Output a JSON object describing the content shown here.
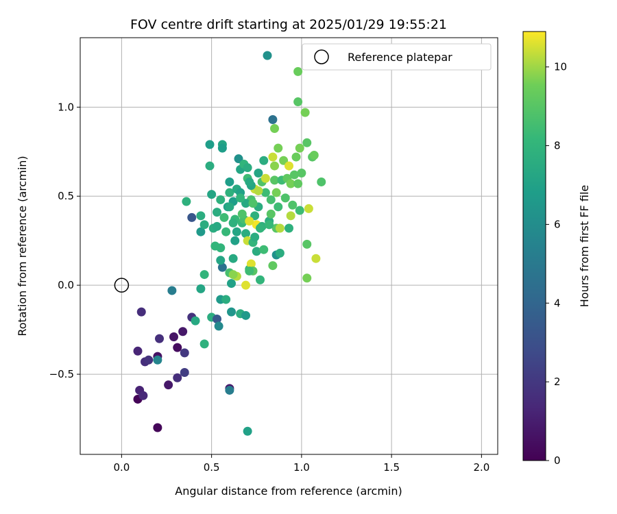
{
  "chart_data": {
    "type": "scatter",
    "title": "FOV centre drift starting at 2025/01/29 19:55:21",
    "xlabel": "Angular distance from reference (arcmin)",
    "ylabel": "Rotation from reference (arcmin)",
    "xlim": [
      -0.23,
      2.09
    ],
    "ylim": [
      -0.95,
      1.39
    ],
    "xticks": [
      0.0,
      0.5,
      1.0,
      1.5,
      2.0
    ],
    "xtick_labels": [
      "0.0",
      "0.5",
      "1.0",
      "1.5",
      "2.0"
    ],
    "yticks": [
      -0.5,
      0.0,
      0.5,
      1.0
    ],
    "ytick_labels": [
      "−0.5",
      "0.0",
      "0.5",
      "1.0"
    ],
    "grid": true,
    "legend": {
      "label": "Reference platepar",
      "placement": "top-right"
    },
    "reference_point": {
      "x": 0.0,
      "y": 0.0
    },
    "colorbar": {
      "label": "Hours from first FF file",
      "range": [
        0,
        10.9
      ],
      "ticks": [
        0,
        2,
        4,
        6,
        8,
        10
      ],
      "tick_labels": [
        "0",
        "2",
        "4",
        "6",
        "8",
        "10"
      ],
      "colormap": "viridis"
    },
    "points": [
      [
        0.09,
        -0.64,
        0.1
      ],
      [
        0.2,
        -0.8,
        0.2
      ],
      [
        0.1,
        -0.59,
        1.2
      ],
      [
        0.12,
        -0.62,
        1.4
      ],
      [
        0.11,
        -0.15,
        1.6
      ],
      [
        0.09,
        -0.37,
        1.3
      ],
      [
        0.13,
        -0.43,
        1.6
      ],
      [
        0.15,
        -0.42,
        1.8
      ],
      [
        0.2,
        -0.4,
        0.6
      ],
      [
        0.21,
        -0.3,
        1.7
      ],
      [
        0.26,
        -0.56,
        0.8
      ],
      [
        0.29,
        -0.29,
        0.7
      ],
      [
        0.31,
        -0.35,
        0.4
      ],
      [
        0.31,
        -0.52,
        1.6
      ],
      [
        0.34,
        -0.26,
        0.8
      ],
      [
        0.35,
        -0.38,
        2.0
      ],
      [
        0.35,
        -0.49,
        2.2
      ],
      [
        0.39,
        -0.18,
        1.8
      ],
      [
        0.6,
        -0.58,
        0.9
      ],
      [
        0.2,
        -0.42,
        5.6
      ],
      [
        0.28,
        -0.03,
        5.2
      ],
      [
        0.39,
        0.38,
        3.3
      ],
      [
        0.6,
        -0.59,
        5.2
      ],
      [
        0.7,
        -0.82,
        7.0
      ],
      [
        0.41,
        -0.2,
        7.4
      ],
      [
        0.44,
        -0.02,
        7.2
      ],
      [
        0.46,
        -0.33,
        7.8
      ],
      [
        0.46,
        0.06,
        8.0
      ],
      [
        0.5,
        -0.18,
        7.6
      ],
      [
        0.53,
        -0.19,
        3.4
      ],
      [
        0.54,
        -0.23,
        5.8
      ],
      [
        0.55,
        -0.08,
        6.6
      ],
      [
        0.58,
        -0.08,
        7.6
      ],
      [
        0.56,
        0.1,
        4.6
      ],
      [
        0.61,
        -0.15,
        6.4
      ],
      [
        0.66,
        -0.16,
        7.6
      ],
      [
        0.69,
        -0.17,
        6.6
      ],
      [
        0.36,
        0.47,
        7.8
      ],
      [
        0.44,
        0.39,
        7.6
      ],
      [
        0.44,
        0.3,
        6.6
      ],
      [
        0.46,
        0.34,
        7.6
      ],
      [
        0.49,
        0.79,
        6.8
      ],
      [
        0.49,
        0.67,
        7.6
      ],
      [
        0.5,
        0.51,
        7.2
      ],
      [
        0.51,
        0.32,
        7.6
      ],
      [
        0.52,
        0.22,
        8.0
      ],
      [
        0.53,
        0.41,
        7.6
      ],
      [
        0.55,
        0.48,
        7.8
      ],
      [
        0.55,
        0.14,
        7.2
      ],
      [
        0.55,
        0.21,
        8.0
      ],
      [
        0.56,
        0.79,
        7.2
      ],
      [
        0.56,
        0.77,
        6.8
      ],
      [
        0.57,
        0.38,
        8.4
      ],
      [
        0.59,
        0.44,
        7.0
      ],
      [
        0.6,
        0.52,
        7.8
      ],
      [
        0.6,
        0.07,
        8.6
      ],
      [
        0.61,
        0.01,
        7.0
      ],
      [
        0.62,
        0.47,
        6.8
      ],
      [
        0.62,
        0.15,
        7.4
      ],
      [
        0.63,
        0.37,
        8.2
      ],
      [
        0.63,
        0.25,
        7.0
      ],
      [
        0.64,
        0.54,
        7.4
      ],
      [
        0.64,
        0.05,
        10.2
      ],
      [
        0.65,
        0.71,
        6.2
      ],
      [
        0.66,
        0.65,
        7.2
      ],
      [
        0.67,
        0.35,
        8.2
      ],
      [
        0.68,
        0.68,
        8.0
      ],
      [
        0.68,
        0.37,
        8.6
      ],
      [
        0.69,
        0.29,
        7.6
      ],
      [
        0.7,
        0.66,
        7.6
      ],
      [
        0.7,
        0.6,
        8.4
      ],
      [
        0.7,
        0.25,
        10.4
      ],
      [
        0.71,
        0.09,
        8.2
      ],
      [
        0.72,
        0.48,
        8.6
      ],
      [
        0.72,
        0.12,
        10.6
      ],
      [
        0.73,
        0.24,
        8.0
      ],
      [
        0.73,
        0.08,
        9.0
      ],
      [
        0.74,
        0.39,
        7.8
      ],
      [
        0.74,
        0.54,
        10.4
      ],
      [
        0.75,
        0.34,
        10.8
      ],
      [
        0.75,
        0.19,
        7.6
      ],
      [
        0.76,
        0.63,
        7.2
      ],
      [
        0.76,
        0.44,
        7.6
      ],
      [
        0.77,
        0.03,
        8.0
      ],
      [
        0.78,
        0.33,
        7.8
      ],
      [
        0.78,
        0.58,
        8.8
      ],
      [
        0.79,
        0.7,
        7.6
      ],
      [
        0.79,
        0.2,
        8.4
      ],
      [
        0.8,
        0.6,
        10.4
      ],
      [
        0.81,
        1.29,
        6.2
      ],
      [
        0.82,
        0.36,
        7.6
      ],
      [
        0.83,
        0.48,
        8.6
      ],
      [
        0.83,
        0.4,
        9.0
      ],
      [
        0.84,
        0.93,
        4.6
      ],
      [
        0.84,
        0.72,
        10.4
      ],
      [
        0.85,
        0.59,
        9.0
      ],
      [
        0.85,
        0.88,
        9.6
      ],
      [
        0.85,
        0.67,
        9.8
      ],
      [
        0.86,
        0.52,
        9.6
      ],
      [
        0.86,
        0.32,
        9.0
      ],
      [
        0.86,
        0.17,
        6.2
      ],
      [
        0.87,
        0.44,
        8.4
      ],
      [
        0.87,
        0.77,
        9.6
      ],
      [
        0.88,
        0.18,
        7.6
      ],
      [
        0.88,
        0.32,
        10.2
      ],
      [
        0.89,
        0.59,
        8.4
      ],
      [
        0.9,
        0.7,
        9.6
      ],
      [
        0.91,
        0.49,
        8.8
      ],
      [
        0.92,
        0.6,
        9.2
      ],
      [
        0.93,
        0.67,
        10.6
      ],
      [
        0.94,
        0.57,
        9.6
      ],
      [
        0.94,
        0.39,
        10.2
      ],
      [
        0.95,
        0.45,
        8.8
      ],
      [
        0.96,
        0.62,
        9.0
      ],
      [
        0.97,
        0.72,
        9.4
      ],
      [
        0.98,
        1.03,
        9.0
      ],
      [
        0.98,
        0.57,
        9.2
      ],
      [
        0.98,
        1.2,
        9.4
      ],
      [
        0.99,
        0.42,
        8.4
      ],
      [
        0.99,
        0.77,
        9.6
      ],
      [
        1.0,
        0.63,
        9.0
      ],
      [
        1.02,
        0.97,
        9.6
      ],
      [
        1.03,
        0.8,
        9.0
      ],
      [
        1.04,
        0.43,
        10.4
      ],
      [
        1.06,
        0.72,
        9.0
      ],
      [
        1.07,
        0.73,
        9.4
      ],
      [
        1.08,
        0.15,
        10.4
      ],
      [
        1.11,
        0.58,
        8.8
      ],
      [
        0.71,
        0.08,
        8.4
      ],
      [
        0.6,
        0.44,
        7.4
      ],
      [
        0.62,
        0.35,
        7.8
      ],
      [
        0.66,
        0.52,
        7.0
      ],
      [
        0.69,
        0.46,
        7.4
      ],
      [
        0.72,
        0.56,
        7.2
      ],
      [
        0.74,
        0.27,
        7.6
      ],
      [
        0.77,
        0.32,
        8.0
      ],
      [
        0.8,
        0.52,
        8.4
      ],
      [
        0.82,
        0.34,
        8.2
      ],
      [
        0.67,
        0.4,
        8.8
      ],
      [
        0.71,
        0.36,
        10.6
      ],
      [
        0.69,
        0.0,
        10.6
      ],
      [
        0.73,
        0.46,
        8.8
      ],
      [
        0.76,
        0.53,
        10.2
      ],
      [
        0.62,
        0.06,
        9.8
      ],
      [
        0.64,
        0.3,
        7.2
      ],
      [
        0.53,
        0.33,
        7.4
      ],
      [
        0.58,
        0.3,
        8.2
      ],
      [
        0.6,
        0.58,
        6.8
      ],
      [
        0.84,
        0.11,
        9.2
      ],
      [
        1.03,
        0.04,
        9.6
      ],
      [
        1.03,
        0.23,
        9.0
      ],
      [
        0.93,
        0.32,
        7.8
      ],
      [
        0.71,
        0.58,
        7.4
      ],
      [
        0.66,
        0.49,
        8.0
      ]
    ]
  }
}
